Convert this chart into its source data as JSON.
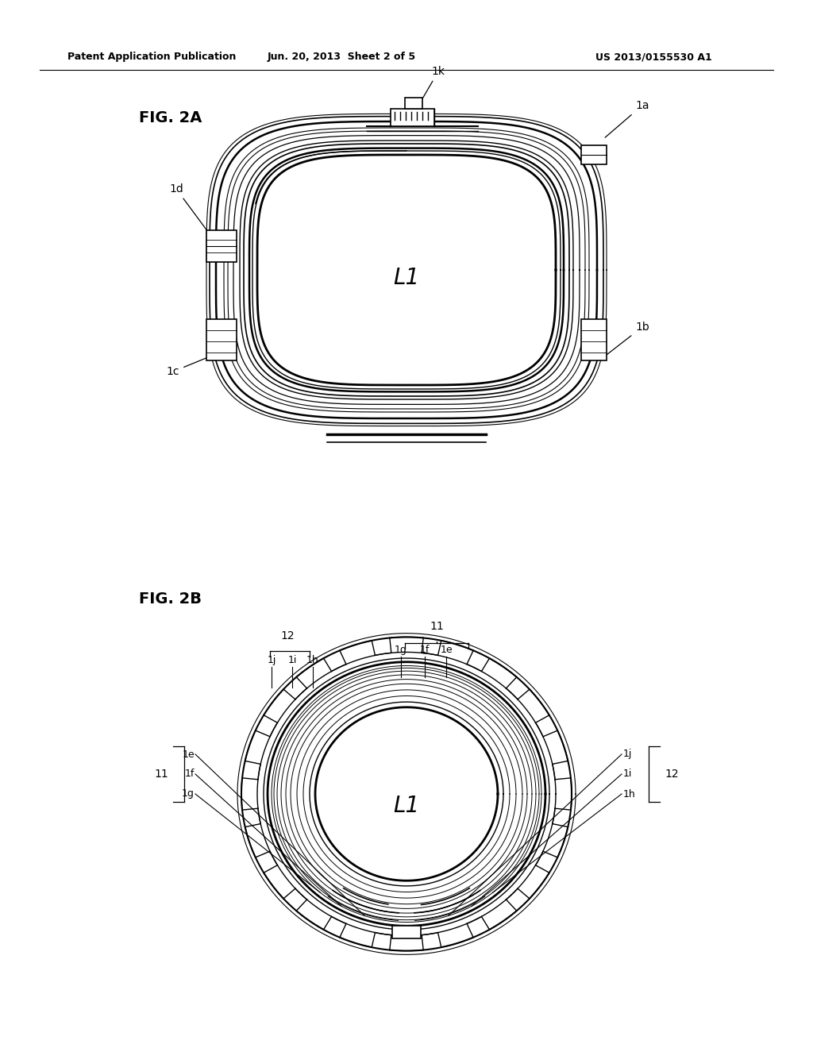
{
  "background_color": "#ffffff",
  "header_text_left": "Patent Application Publication",
  "header_text_mid": "Jun. 20, 2013  Sheet 2 of 5",
  "header_text_right": "US 2013/0155530 A1",
  "fig2a_label": "FIG. 2A",
  "fig2b_label": "FIG. 2B",
  "label_L1_2a": "L1",
  "label_L1_2b": "L1"
}
